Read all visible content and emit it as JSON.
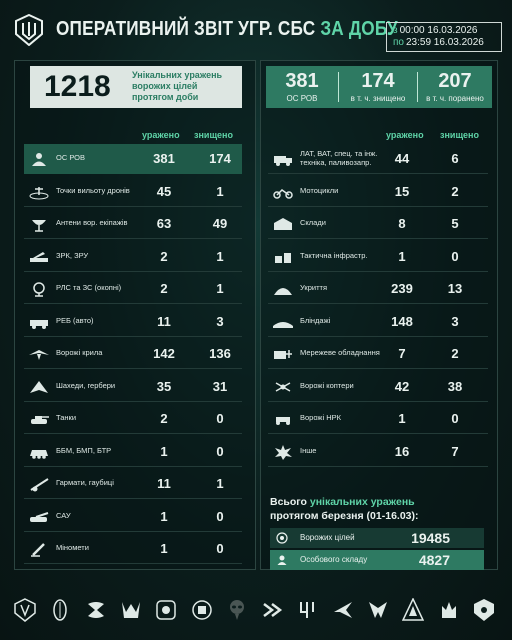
{
  "header": {
    "title_main": "ОПЕРАТИВНИЙ ЗВІТ УГР. СБС ",
    "title_accent": "ЗА ДОБУ",
    "date_from_prefix": "з",
    "date_from": "00:00 16.03.2026",
    "date_to_prefix": "по",
    "date_to": "23:59 16.03.2026"
  },
  "summary": {
    "unique_hits": "1218",
    "unique_hits_label": [
      "Унікальних уражень",
      "ворожих цілей",
      "протягом доби"
    ],
    "personnel": "381",
    "personnel_label": "ОС РОВ",
    "killed": "174",
    "killed_label": "в т. ч. знищено",
    "wounded": "207",
    "wounded_label": "в т. ч. поранено"
  },
  "columns": {
    "hit": "уражено",
    "destroyed": "знищено"
  },
  "left_rows": [
    {
      "icon": "personnel-icon",
      "label": "ОС РОВ",
      "hit": "381",
      "destroyed": "174"
    },
    {
      "icon": "drone-launch-point-icon",
      "label": "Точки вильоту дронів",
      "hit": "45",
      "destroyed": "1"
    },
    {
      "icon": "antenna-icon",
      "label": "Антени вор. екіпажів",
      "hit": "63",
      "destroyed": "49"
    },
    {
      "icon": "mlrs-icon",
      "label": "ЗРК, ЗРУ",
      "hit": "2",
      "destroyed": "1"
    },
    {
      "icon": "radar-icon",
      "label": "РЛС та ЗС (окопні)",
      "hit": "2",
      "destroyed": "1"
    },
    {
      "icon": "ew-vehicle-icon",
      "label": "РЕБ (авто)",
      "hit": "11",
      "destroyed": "3"
    },
    {
      "icon": "wing-icon",
      "label": "Ворожі крила",
      "hit": "142",
      "destroyed": "136"
    },
    {
      "icon": "shahed-icon",
      "label": "Шахеди, гербери",
      "hit": "35",
      "destroyed": "31"
    },
    {
      "icon": "tank-icon",
      "label": "Танки",
      "hit": "2",
      "destroyed": "0"
    },
    {
      "icon": "apc-icon",
      "label": "ББМ, БМП, БТР",
      "hit": "1",
      "destroyed": "0"
    },
    {
      "icon": "howitzer-icon",
      "label": "Гармати, гаубиці",
      "hit": "11",
      "destroyed": "1"
    },
    {
      "icon": "spg-icon",
      "label": "САУ",
      "hit": "1",
      "destroyed": "0"
    },
    {
      "icon": "mortar-icon",
      "label": "Міномети",
      "hit": "1",
      "destroyed": "0"
    }
  ],
  "right_rows": [
    {
      "icon": "truck-icon",
      "label": "ЛАТ, ВАТ, спец. та інж. техніка, паливозапр.",
      "hit": "44",
      "destroyed": "6"
    },
    {
      "icon": "motorcycle-icon",
      "label": "Мотоцикли",
      "hit": "15",
      "destroyed": "2"
    },
    {
      "icon": "warehouse-icon",
      "label": "Склади",
      "hit": "8",
      "destroyed": "5"
    },
    {
      "icon": "infrastructure-icon",
      "label": "Тактична інфрастр.",
      "hit": "1",
      "destroyed": "0"
    },
    {
      "icon": "shelter-icon",
      "label": "Укриття",
      "hit": "239",
      "destroyed": "13"
    },
    {
      "icon": "dugout-icon",
      "label": "Бліндажі",
      "hit": "148",
      "destroyed": "3"
    },
    {
      "icon": "network-icon",
      "label": "Мережеве обладнання",
      "hit": "7",
      "destroyed": "2"
    },
    {
      "icon": "quadcopter-icon",
      "label": "Ворожі коптери",
      "hit": "42",
      "destroyed": "38"
    },
    {
      "icon": "ugv-icon",
      "label": "Ворожі НРК",
      "hit": "1",
      "destroyed": "0"
    },
    {
      "icon": "explosion-icon",
      "label": "Інше",
      "hit": "16",
      "destroyed": "7"
    }
  ],
  "month": {
    "title_prefix": "Всього ",
    "title_accent": "унікальних уражень",
    "title_line2": "протягом березня (01-16.03):",
    "targets_label": "Ворожих цілей",
    "targets_value": "19485",
    "personnel_label": "Особового складу",
    "personnel_value": "4827"
  },
  "colors": {
    "accent": "#5fd4a8",
    "highlight": "#2e7a62",
    "background": "#0b1d1c"
  },
  "badge_icons": [
    "unit-emblem-1-icon",
    "unit-emblem-2-icon",
    "unit-emblem-3-icon",
    "unit-emblem-4-icon",
    "unit-emblem-5-icon",
    "unit-emblem-6-icon",
    "unit-emblem-7-icon",
    "unit-emblem-8-icon",
    "unit-emblem-9-icon",
    "unit-emblem-10-icon",
    "unit-emblem-11-icon",
    "unit-emblem-12-icon",
    "unit-emblem-13-icon",
    "unit-emblem-14-icon"
  ]
}
